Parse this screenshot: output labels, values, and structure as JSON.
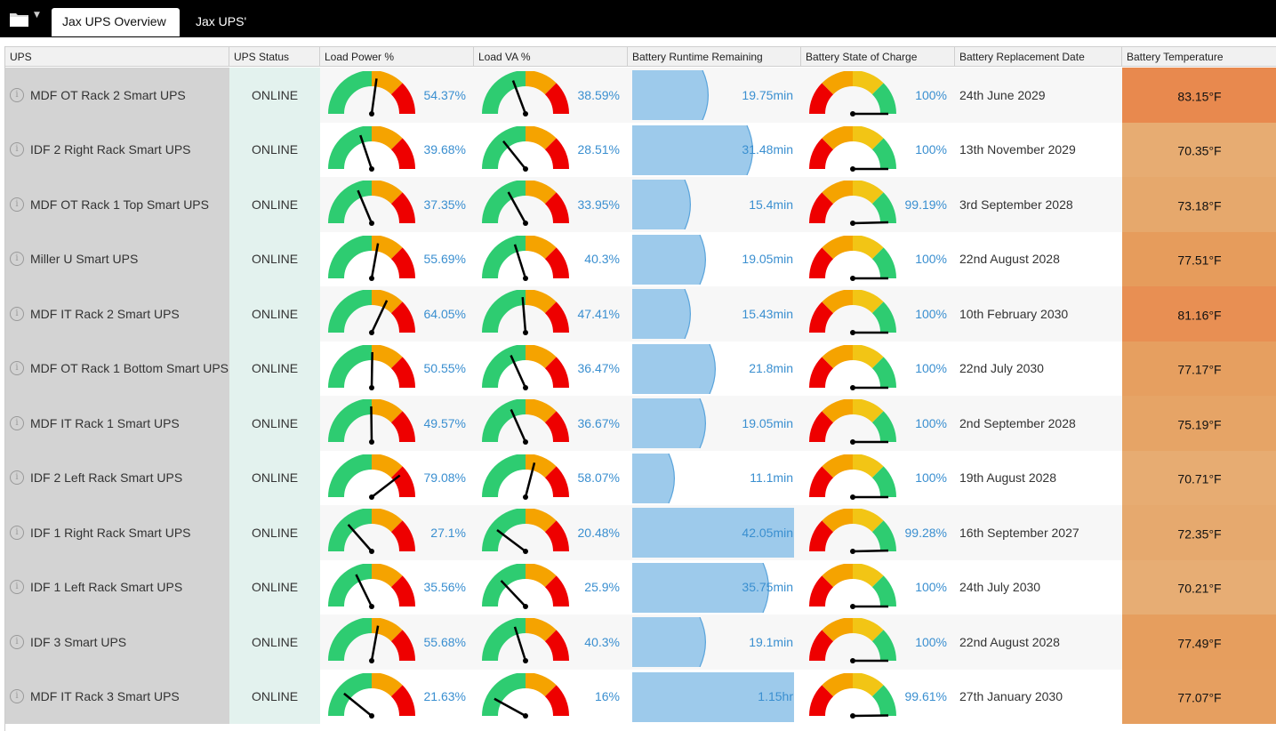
{
  "toolbar": {
    "folder_icon": "folder-icon",
    "dropdown_icon": "caret-down-icon"
  },
  "tabs": [
    {
      "label": "Jax UPS Overview",
      "active": true
    },
    {
      "label": "Jax UPS'",
      "active": false
    }
  ],
  "columns": {
    "ups": "UPS",
    "status": "UPS Status",
    "load_power": "Load Power %",
    "load_va": "Load VA %",
    "runtime": "Battery Runtime Remaining",
    "charge": "Battery State of Charge",
    "replacement": "Battery Replacement Date",
    "temperature": "Battery Temperature"
  },
  "colors": {
    "gauge_green": "#2ecc71",
    "gauge_orange": "#f5a300",
    "gauge_red": "#ee0000",
    "gauge_yellow": "#f2c515",
    "runtime_fill": "#9dcaeb",
    "status_bg": "#e3f2ee",
    "value_text": "#3a8fd0"
  },
  "rows": [
    {
      "name": "MDF OT Rack 2 Smart UPS",
      "status": "ONLINE",
      "load_power": 54.37,
      "load_power_label": "54.37%",
      "load_va": 38.59,
      "load_va_label": "38.59%",
      "runtime_fraction": 0.48,
      "runtime_label": "19.75min",
      "charge": 100,
      "charge_label": "100%",
      "replacement": "24th June 2029",
      "temperature": "83.15°F",
      "temp_color": "#e8894e"
    },
    {
      "name": "IDF 2 Right Rack Smart UPS",
      "status": "ONLINE",
      "load_power": 39.68,
      "load_power_label": "39.68%",
      "load_va": 28.51,
      "load_va_label": "28.51%",
      "runtime_fraction": 0.75,
      "runtime_label": "31.48min",
      "charge": 100,
      "charge_label": "100%",
      "replacement": "13th November 2029",
      "temperature": "70.35°F",
      "temp_color": "#e7ac72"
    },
    {
      "name": "MDF OT Rack 1 Top Smart UPS",
      "status": "ONLINE",
      "load_power": 37.35,
      "load_power_label": "37.35%",
      "load_va": 33.95,
      "load_va_label": "33.95%",
      "runtime_fraction": 0.37,
      "runtime_label": "15.4min",
      "charge": 99.19,
      "charge_label": "99.19%",
      "replacement": "3rd September 2028",
      "temperature": "73.18°F",
      "temp_color": "#e6a86c"
    },
    {
      "name": "Miller U Smart UPS",
      "status": "ONLINE",
      "load_power": 55.69,
      "load_power_label": "55.69%",
      "load_va": 40.3,
      "load_va_label": "40.3%",
      "runtime_fraction": 0.46,
      "runtime_label": "19.05min",
      "charge": 100,
      "charge_label": "100%",
      "replacement": "22nd August 2028",
      "temperature": "77.51°F",
      "temp_color": "#e69c5c"
    },
    {
      "name": "MDF IT Rack 2 Smart UPS",
      "status": "ONLINE",
      "load_power": 64.05,
      "load_power_label": "64.05%",
      "load_va": 47.41,
      "load_va_label": "47.41%",
      "runtime_fraction": 0.37,
      "runtime_label": "15.43min",
      "charge": 100,
      "charge_label": "100%",
      "replacement": "10th February 2030",
      "temperature": "81.16°F",
      "temp_color": "#e88f53"
    },
    {
      "name": "MDF OT Rack 1 Bottom Smart UPS",
      "status": "ONLINE",
      "load_power": 50.55,
      "load_power_label": "50.55%",
      "load_va": 36.47,
      "load_va_label": "36.47%",
      "runtime_fraction": 0.52,
      "runtime_label": "21.8min",
      "charge": 100,
      "charge_label": "100%",
      "replacement": "22nd July 2030",
      "temperature": "77.17°F",
      "temp_color": "#e69f60"
    },
    {
      "name": "MDF IT Rack 1 Smart UPS",
      "status": "ONLINE",
      "load_power": 49.57,
      "load_power_label": "49.57%",
      "load_va": 36.67,
      "load_va_label": "36.67%",
      "runtime_fraction": 0.46,
      "runtime_label": "19.05min",
      "charge": 100,
      "charge_label": "100%",
      "replacement": "2nd September 2028",
      "temperature": "75.19°F",
      "temp_color": "#e6a466"
    },
    {
      "name": "IDF 2 Left Rack Smart UPS",
      "status": "ONLINE",
      "load_power": 79.08,
      "load_power_label": "79.08%",
      "load_va": 58.07,
      "load_va_label": "58.07%",
      "runtime_fraction": 0.27,
      "runtime_label": "11.1min",
      "charge": 100,
      "charge_label": "100%",
      "replacement": "19th August 2028",
      "temperature": "70.71°F",
      "temp_color": "#e7ac72"
    },
    {
      "name": "IDF 1 Right Rack Smart UPS",
      "status": "ONLINE",
      "load_power": 27.1,
      "load_power_label": "27.1%",
      "load_va": 20.48,
      "load_va_label": "20.48%",
      "runtime_fraction": 1.0,
      "runtime_label": "42.05min",
      "charge": 99.28,
      "charge_label": "99.28%",
      "replacement": "16th September 2027",
      "temperature": "72.35°F",
      "temp_color": "#e6a96e"
    },
    {
      "name": "IDF 1 Left Rack Smart UPS",
      "status": "ONLINE",
      "load_power": 35.56,
      "load_power_label": "35.56%",
      "load_va": 25.9,
      "load_va_label": "25.9%",
      "runtime_fraction": 0.85,
      "runtime_label": "35.75min",
      "charge": 100,
      "charge_label": "100%",
      "replacement": "24th July 2030",
      "temperature": "70.21°F",
      "temp_color": "#e7ad74"
    },
    {
      "name": "IDF 3 Smart UPS",
      "status": "ONLINE",
      "load_power": 55.68,
      "load_power_label": "55.68%",
      "load_va": 40.3,
      "load_va_label": "40.3%",
      "runtime_fraction": 0.46,
      "runtime_label": "19.1min",
      "charge": 100,
      "charge_label": "100%",
      "replacement": "22nd August 2028",
      "temperature": "77.49°F",
      "temp_color": "#e69e5e"
    },
    {
      "name": "MDF IT Rack 3 Smart UPS",
      "status": "ONLINE",
      "load_power": 21.63,
      "load_power_label": "21.63%",
      "load_va": 16,
      "load_va_label": "16%",
      "runtime_fraction": 1.0,
      "runtime_label": "1.15hr",
      "charge": 99.61,
      "charge_label": "99.61%",
      "replacement": "27th January 2030",
      "temperature": "77.07°F",
      "temp_color": "#e69f60"
    }
  ]
}
